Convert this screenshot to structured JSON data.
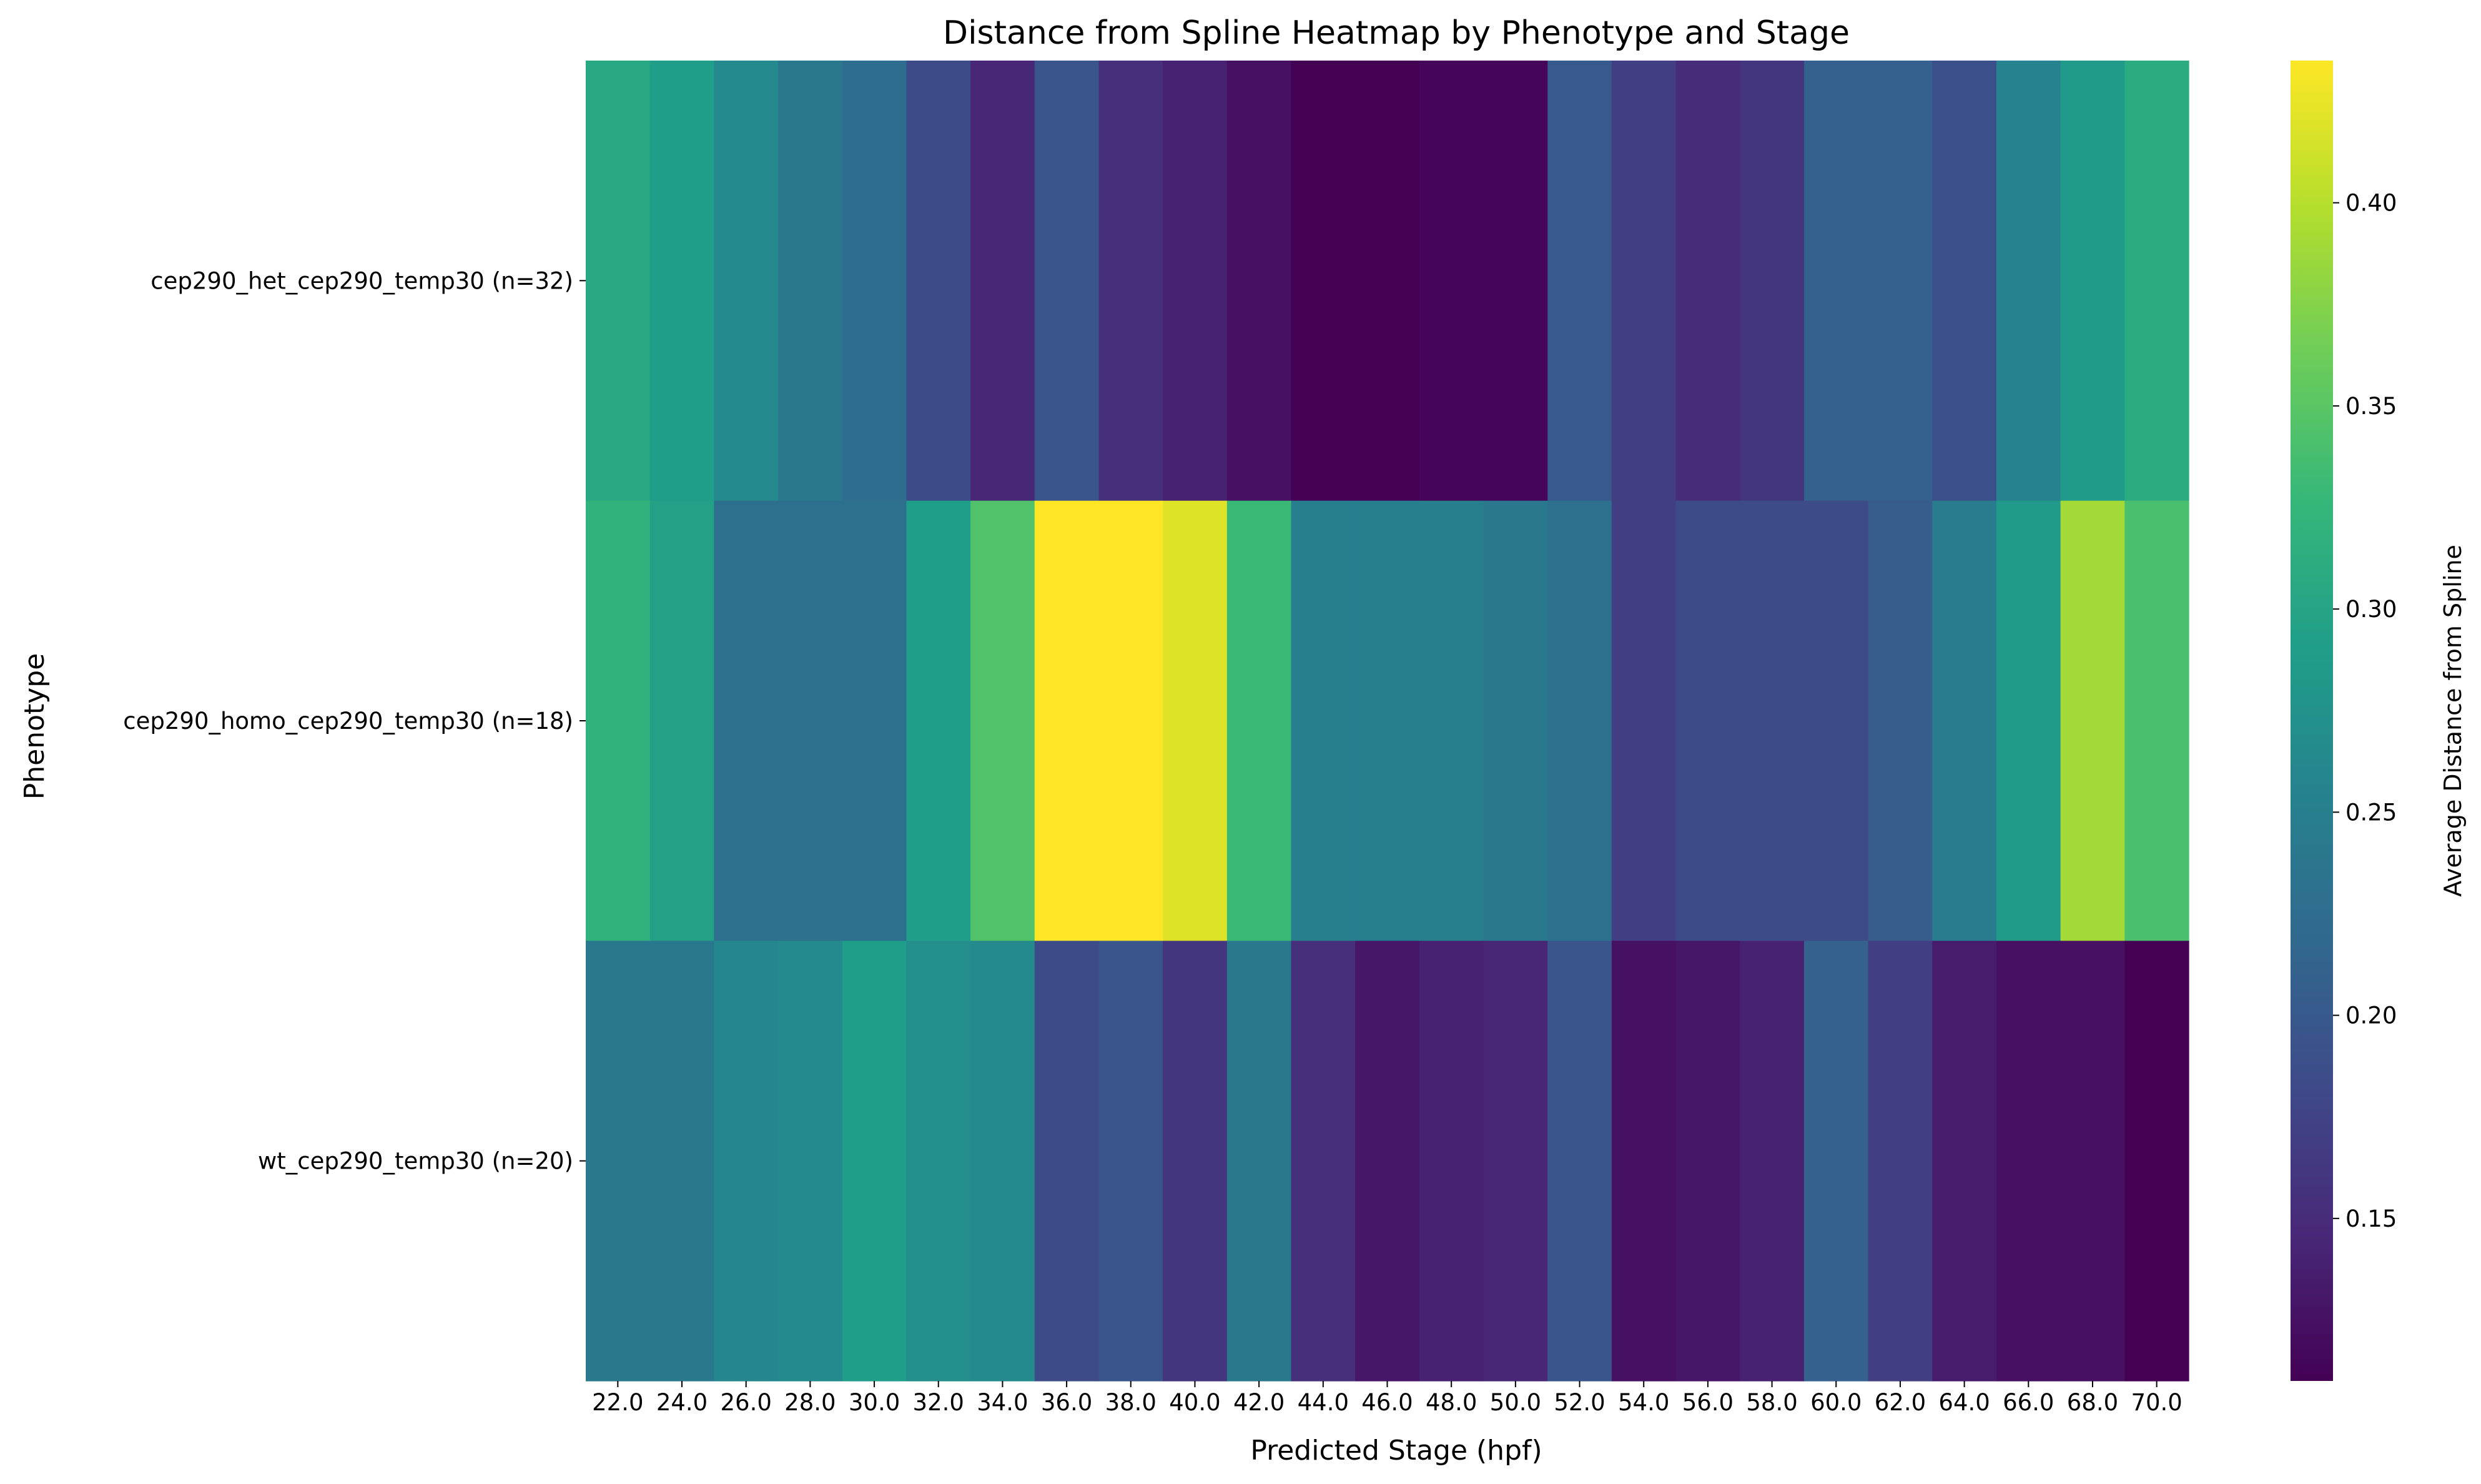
{
  "chart_data": {
    "type": "heatmap",
    "title": "Distance from Spline Heatmap by Phenotype and Stage",
    "xlabel": "Predicted Stage (hpf)",
    "ylabel": "Phenotype",
    "x": [
      "22.0",
      "24.0",
      "26.0",
      "28.0",
      "30.0",
      "32.0",
      "34.0",
      "36.0",
      "38.0",
      "40.0",
      "42.0",
      "44.0",
      "46.0",
      "48.0",
      "50.0",
      "52.0",
      "54.0",
      "56.0",
      "58.0",
      "60.0",
      "62.0",
      "64.0",
      "66.0",
      "68.0",
      "70.0"
    ],
    "y": [
      "cep290_het_cep290_temp30 (n=32)",
      "cep290_homo_cep290_temp30 (n=18)",
      "wt_cep290_temp30 (n=20)"
    ],
    "values": [
      [
        0.305,
        0.29,
        0.265,
        0.24,
        0.225,
        0.185,
        0.145,
        0.195,
        0.155,
        0.14,
        0.125,
        0.11,
        0.11,
        0.115,
        0.115,
        0.2,
        0.17,
        0.15,
        0.16,
        0.21,
        0.21,
        0.19,
        0.255,
        0.285,
        0.31
      ],
      [
        0.32,
        0.295,
        0.23,
        0.23,
        0.23,
        0.29,
        0.345,
        0.435,
        0.435,
        0.42,
        0.33,
        0.25,
        0.25,
        0.25,
        0.24,
        0.23,
        0.17,
        0.185,
        0.185,
        0.185,
        0.205,
        0.245,
        0.285,
        0.39,
        0.34
      ],
      [
        0.24,
        0.24,
        0.26,
        0.265,
        0.29,
        0.27,
        0.265,
        0.185,
        0.195,
        0.16,
        0.24,
        0.155,
        0.13,
        0.14,
        0.145,
        0.195,
        0.125,
        0.13,
        0.14,
        0.21,
        0.17,
        0.135,
        0.125,
        0.125,
        0.11
      ]
    ],
    "colorbar": {
      "label": "Average Distance from Spline",
      "colormap": "viridis",
      "range": [
        0.11,
        0.435
      ],
      "ticks": [
        "0.15",
        "0.20",
        "0.25",
        "0.30",
        "0.35",
        "0.40"
      ]
    },
    "grid": false,
    "legend": "none"
  }
}
